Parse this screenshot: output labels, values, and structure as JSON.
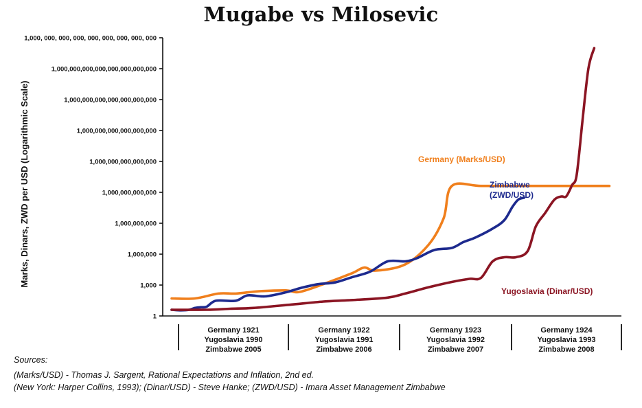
{
  "chart_data": {
    "type": "line",
    "title": "Mugabe vs Milosevic",
    "ylabel": "Marks, Dinars, ZWD per USD (Logarithmic Scale)",
    "y_scale": "log",
    "ylim": [
      1,
      1000000000000000000000000000
    ],
    "y_ticks": [
      {
        "value": 1,
        "label": "1"
      },
      {
        "value": 1000,
        "label": "1,000"
      },
      {
        "value": 1000000,
        "label": "1,000,000"
      },
      {
        "value": 1000000000,
        "label": "1,000,000,000"
      },
      {
        "value": 1000000000000,
        "label": "1,000,000,000,000"
      },
      {
        "value": 1000000000000000,
        "label": "1,000,000,000,000,000"
      },
      {
        "value": 1000000000000000000,
        "label": "1,000,000,000,000,000,000"
      },
      {
        "value": 1000000000000000000000,
        "label": "1,000,000,000,000,000,000,000"
      },
      {
        "value": 1000000000000000000000000,
        "label": "1,000,000,000,000,000,000,000,000"
      },
      {
        "value": 1000000000000000000000000000,
        "label": "1,000, 000, 000, 000, 000, 000, 000, 000, 000"
      }
    ],
    "x_periods": [
      {
        "lines": [
          "Germany 1921",
          "Yugoslavia 1990",
          "Zimbabwe 2005"
        ]
      },
      {
        "lines": [
          "Germany 1922",
          "Yugoslavia 1991",
          "Zimbabwe 2006"
        ]
      },
      {
        "lines": [
          "Germany 1923",
          "Yugoslavia 1992",
          "Zimbabwe 2007"
        ]
      },
      {
        "lines": [
          "Germany 1924",
          "Yugoslavia 1993",
          "Zimbabwe 2008"
        ]
      }
    ],
    "grid": false,
    "series": [
      {
        "name": "Germany (Marks/USD)",
        "color": "#f07f1c",
        "points": [
          [
            0.0,
            50
          ],
          [
            0.2,
            50
          ],
          [
            0.4,
            150
          ],
          [
            0.55,
            150
          ],
          [
            0.75,
            250
          ],
          [
            0.98,
            300
          ],
          [
            1.1,
            220
          ],
          [
            1.35,
            2000
          ],
          [
            1.55,
            15000
          ],
          [
            1.65,
            50000
          ],
          [
            1.75,
            25000
          ],
          [
            2.0,
            100000
          ],
          [
            2.2,
            8000000
          ],
          [
            2.33,
            3000000000
          ],
          [
            2.4,
            4200000000000
          ],
          [
            2.65,
            4200000000000
          ],
          [
            3.0,
            4200000000000
          ],
          [
            3.4,
            4200000000000
          ],
          [
            3.75,
            4200000000000
          ]
        ]
      },
      {
        "name": "Zimbabwe\n(ZWD/USD)",
        "color": "#1d2a8e",
        "points": [
          [
            0.0,
            4
          ],
          [
            0.08,
            3.5
          ],
          [
            0.15,
            4
          ],
          [
            0.2,
            6
          ],
          [
            0.25,
            7
          ],
          [
            0.3,
            8
          ],
          [
            0.38,
            30
          ],
          [
            0.55,
            30
          ],
          [
            0.65,
            100
          ],
          [
            0.8,
            80
          ],
          [
            0.98,
            200
          ],
          [
            1.1,
            500
          ],
          [
            1.25,
            1200
          ],
          [
            1.4,
            1800
          ],
          [
            1.55,
            6000
          ],
          [
            1.7,
            20000
          ],
          [
            1.85,
            200000
          ],
          [
            2.0,
            200000
          ],
          [
            2.1,
            400000
          ],
          [
            2.25,
            2500000
          ],
          [
            2.4,
            4000000
          ],
          [
            2.5,
            15000000
          ],
          [
            2.6,
            40000000
          ],
          [
            2.75,
            300000000
          ],
          [
            2.85,
            2000000000
          ],
          [
            2.92,
            40000000000
          ],
          [
            2.97,
            200000000000
          ],
          [
            3.02,
            300000000000
          ]
        ]
      },
      {
        "name": "Yugoslavia (Dinar/USD)",
        "color": "#8b1523",
        "points": [
          [
            0.0,
            4
          ],
          [
            0.3,
            4
          ],
          [
            0.5,
            5
          ],
          [
            0.7,
            6
          ],
          [
            1.0,
            12
          ],
          [
            1.3,
            25
          ],
          [
            1.55,
            35
          ],
          [
            1.85,
            60
          ],
          [
            2.0,
            150
          ],
          [
            2.2,
            600
          ],
          [
            2.4,
            2000
          ],
          [
            2.55,
            4000
          ],
          [
            2.65,
            5000
          ],
          [
            2.75,
            200000
          ],
          [
            2.85,
            500000
          ],
          [
            2.95,
            500000
          ],
          [
            3.05,
            2000000
          ],
          [
            3.12,
            500000000
          ],
          [
            3.2,
            10000000000
          ],
          [
            3.28,
            200000000000
          ],
          [
            3.34,
            400000000000
          ],
          [
            3.38,
            400000000000
          ],
          [
            3.43,
            5000000000000
          ],
          [
            3.47,
            50000000000000
          ],
          [
            3.52,
            10000000000000000000
          ],
          [
            3.57,
            1000000000000000000000000
          ],
          [
            3.62,
            100000000000000000000000000
          ]
        ]
      }
    ]
  },
  "sources": {
    "line1": "Sources:",
    "line2": "(Marks/USD) - Thomas J. Sargent, Rational Expectations and Inflation, 2nd ed.",
    "line3": "(New York: Harper Collins, 1993); (Dinar/USD) - Steve Hanke; (ZWD/USD) - Imara Asset Management Zimbabwe"
  }
}
